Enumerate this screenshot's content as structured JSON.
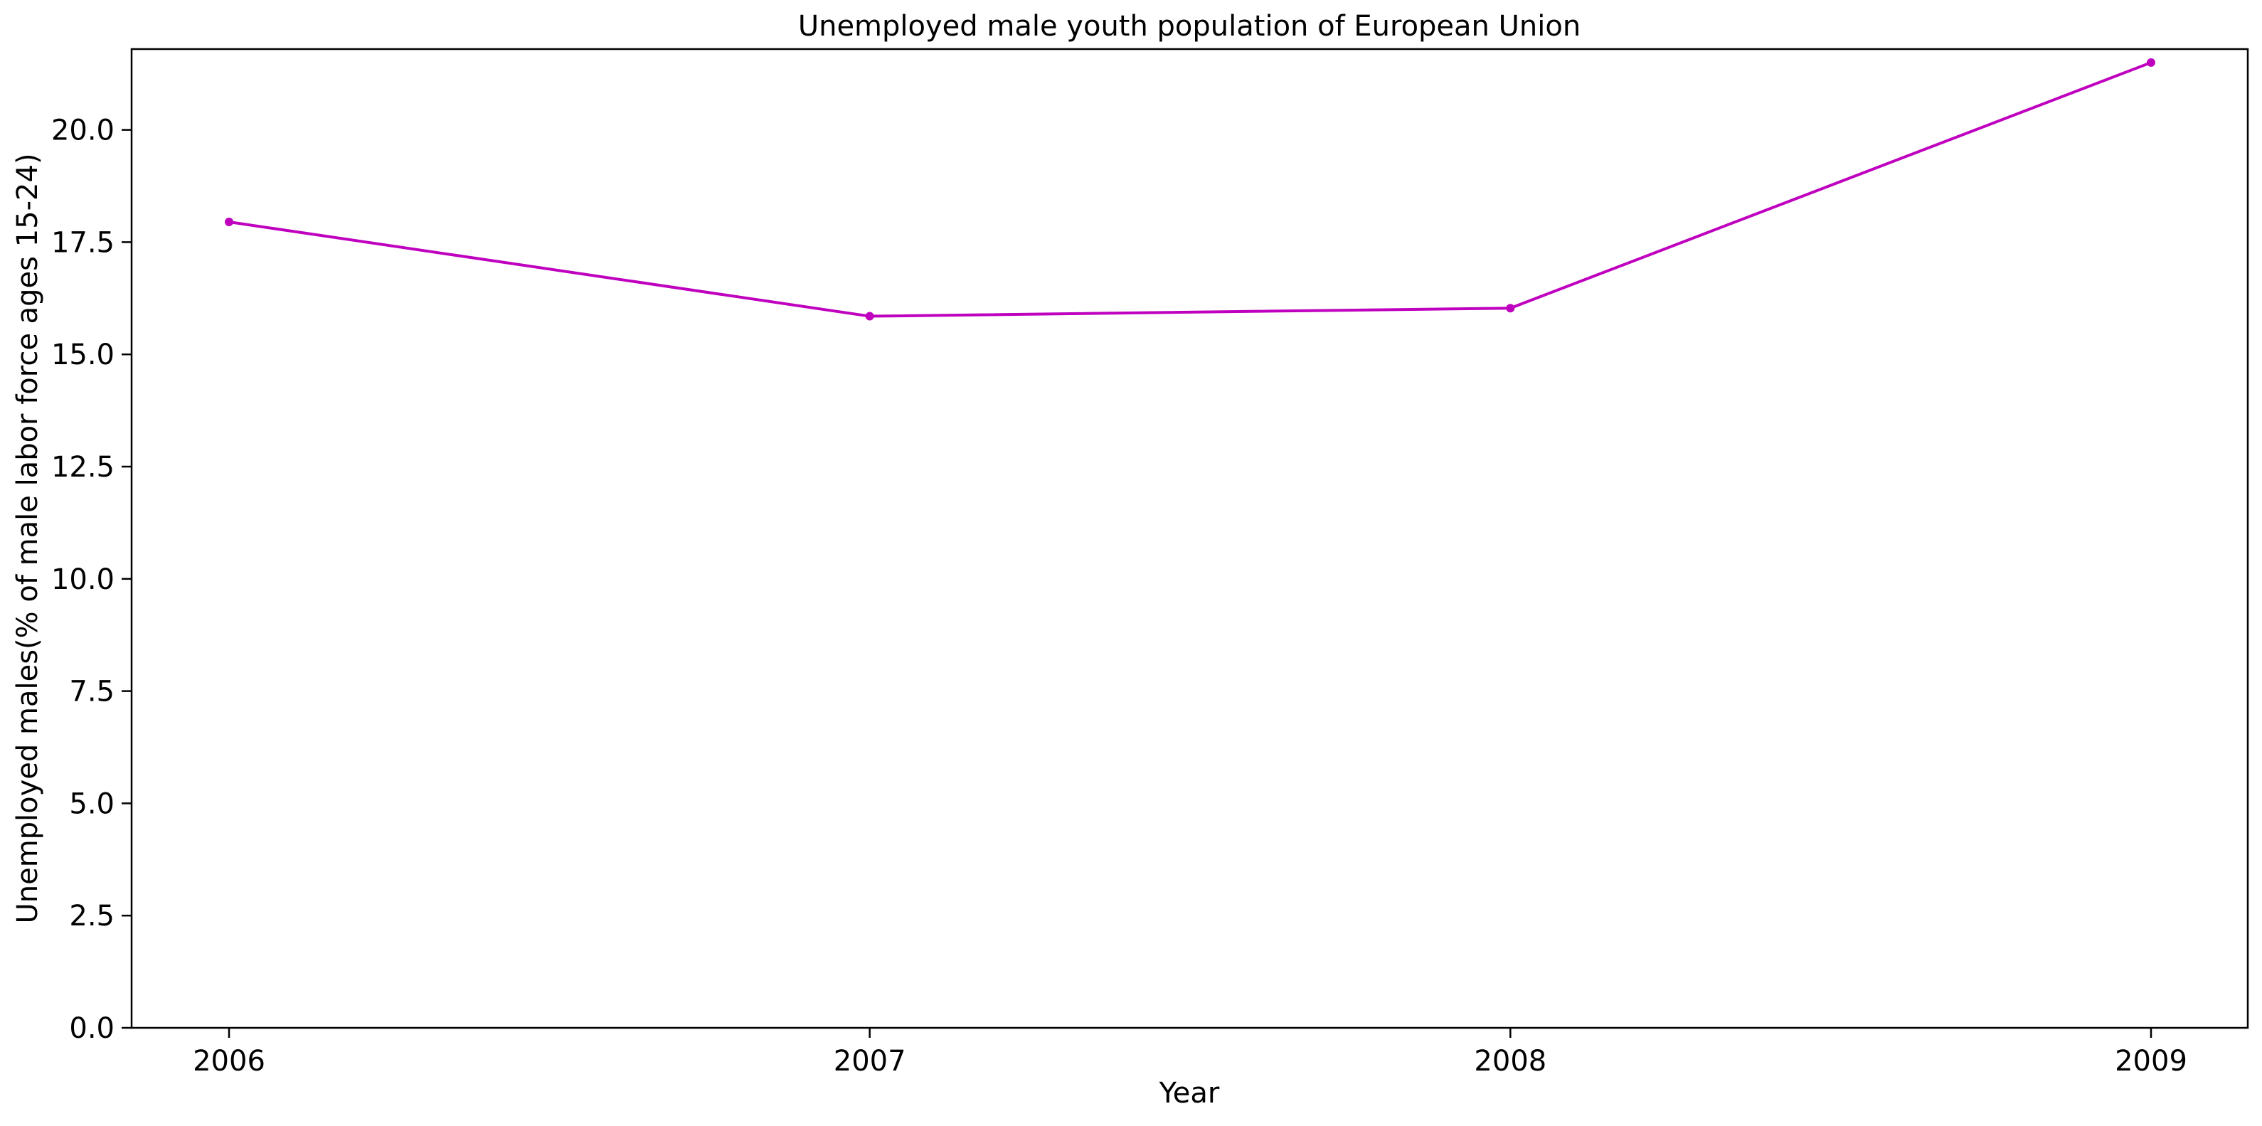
{
  "chart_data": {
    "type": "line",
    "title": "Unemployed male youth population of European Union",
    "xlabel": "Year",
    "ylabel": "Unemployed males(% of male labor force ages 15-24)",
    "categories": [
      "2006",
      "2007",
      "2008",
      "2009"
    ],
    "series": [
      {
        "values": [
          17.95,
          15.85,
          16.03,
          21.5
        ],
        "color": "#bf00bf"
      }
    ],
    "ylim": [
      0,
      21.8
    ],
    "yticks": [
      "0.0",
      "2.5",
      "5.0",
      "7.5",
      "10.0",
      "12.5",
      "15.0",
      "17.5",
      "20.0"
    ],
    "grid": false,
    "legend": "none"
  }
}
